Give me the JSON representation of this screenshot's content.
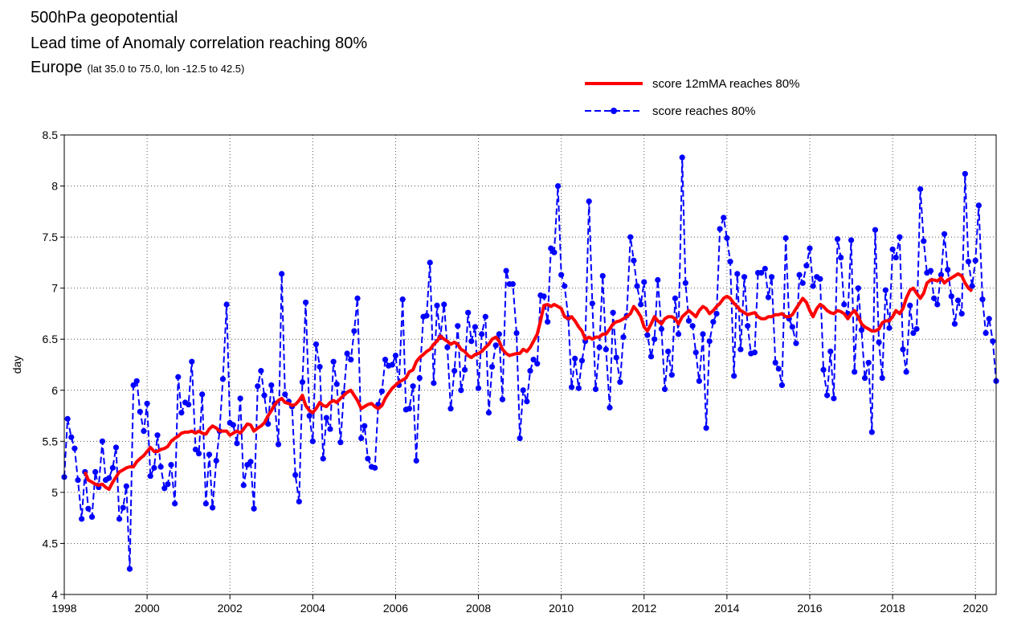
{
  "chart_data": {
    "type": "line",
    "title": "500hPa geopotential",
    "subtitle": "Lead time of Anomaly correlation reaching 80%",
    "region": "Europe",
    "region_note": "(lat  35.0 to 75.0, lon  -12.5 to  42.5)",
    "y_label": "day",
    "grid": true,
    "xlim": [
      1998,
      2020.5
    ],
    "xticks": [
      1998,
      2000,
      2002,
      2004,
      2006,
      2008,
      2010,
      2012,
      2014,
      2016,
      2018,
      2020
    ],
    "ylim": [
      4,
      8.5
    ],
    "yticks": [
      4,
      4.5,
      5,
      5.5,
      6,
      6.5,
      7,
      7.5,
      8,
      8.5
    ],
    "x": [
      1998.0,
      1998.08,
      1998.17,
      1998.25,
      1998.33,
      1998.42,
      1998.5,
      1998.58,
      1998.67,
      1998.75,
      1998.83,
      1998.92,
      1999.0,
      1999.08,
      1999.17,
      1999.25,
      1999.33,
      1999.42,
      1999.5,
      1999.58,
      1999.67,
      1999.75,
      1999.83,
      1999.92,
      2000.0,
      2000.08,
      2000.17,
      2000.25,
      2000.33,
      2000.42,
      2000.5,
      2000.58,
      2000.67,
      2000.75,
      2000.83,
      2000.92,
      2001.0,
      2001.08,
      2001.17,
      2001.25,
      2001.33,
      2001.42,
      2001.5,
      2001.58,
      2001.67,
      2001.75,
      2001.83,
      2001.92,
      2002.0,
      2002.08,
      2002.17,
      2002.25,
      2002.33,
      2002.42,
      2002.5,
      2002.58,
      2002.67,
      2002.75,
      2002.83,
      2002.92,
      2003.0,
      2003.08,
      2003.17,
      2003.25,
      2003.33,
      2003.42,
      2003.5,
      2003.58,
      2003.67,
      2003.75,
      2003.83,
      2003.92,
      2004.0,
      2004.08,
      2004.17,
      2004.25,
      2004.33,
      2004.42,
      2004.5,
      2004.58,
      2004.67,
      2004.75,
      2004.83,
      2004.92,
      2005.0,
      2005.08,
      2005.17,
      2005.25,
      2005.33,
      2005.42,
      2005.5,
      2005.58,
      2005.67,
      2005.75,
      2005.83,
      2005.92,
      2006.0,
      2006.08,
      2006.17,
      2006.25,
      2006.33,
      2006.42,
      2006.5,
      2006.58,
      2006.67,
      2006.75,
      2006.83,
      2006.92,
      2007.0,
      2007.08,
      2007.17,
      2007.25,
      2007.33,
      2007.42,
      2007.5,
      2007.58,
      2007.67,
      2007.75,
      2007.83,
      2007.92,
      2008.0,
      2008.08,
      2008.17,
      2008.25,
      2008.33,
      2008.42,
      2008.5,
      2008.58,
      2008.67,
      2008.75,
      2008.83,
      2008.92,
      2009.0,
      2009.08,
      2009.17,
      2009.25,
      2009.33,
      2009.42,
      2009.5,
      2009.58,
      2009.67,
      2009.75,
      2009.83,
      2009.92,
      2010.0,
      2010.08,
      2010.17,
      2010.25,
      2010.33,
      2010.42,
      2010.5,
      2010.58,
      2010.67,
      2010.75,
      2010.83,
      2010.92,
      2011.0,
      2011.08,
      2011.17,
      2011.25,
      2011.33,
      2011.42,
      2011.5,
      2011.58,
      2011.67,
      2011.75,
      2011.83,
      2011.92,
      2012.0,
      2012.08,
      2012.17,
      2012.25,
      2012.33,
      2012.42,
      2012.5,
      2012.58,
      2012.67,
      2012.75,
      2012.83,
      2012.92,
      2013.0,
      2013.08,
      2013.17,
      2013.25,
      2013.33,
      2013.42,
      2013.5,
      2013.58,
      2013.67,
      2013.75,
      2013.83,
      2013.92,
      2014.0,
      2014.08,
      2014.17,
      2014.25,
      2014.33,
      2014.42,
      2014.5,
      2014.58,
      2014.67,
      2014.75,
      2014.83,
      2014.92,
      2015.0,
      2015.08,
      2015.17,
      2015.25,
      2015.33,
      2015.42,
      2015.5,
      2015.58,
      2015.67,
      2015.75,
      2015.83,
      2015.92,
      2016.0,
      2016.08,
      2016.17,
      2016.25,
      2016.33,
      2016.42,
      2016.5,
      2016.58,
      2016.67,
      2016.75,
      2016.83,
      2016.92,
      2017.0,
      2017.08,
      2017.17,
      2017.25,
      2017.33,
      2017.42,
      2017.5,
      2017.58,
      2017.67,
      2017.75,
      2017.83,
      2017.92,
      2018.0,
      2018.08,
      2018.17,
      2018.25,
      2018.33,
      2018.42,
      2018.5,
      2018.58,
      2018.67,
      2018.75,
      2018.83,
      2018.92,
      2019.0,
      2019.08,
      2019.17,
      2019.25,
      2019.33,
      2019.42,
      2019.5,
      2019.58,
      2019.67,
      2019.75,
      2019.83,
      2019.92,
      2020.0,
      2020.08,
      2020.17,
      2020.25,
      2020.33,
      2020.42,
      2020.5
    ],
    "series": [
      {
        "name": "score 12mMA reaches 80%",
        "color": "#ff0000",
        "dashed": false,
        "markers": false,
        "width": 4,
        "values": [
          null,
          null,
          null,
          null,
          null,
          null,
          5.2,
          5.12,
          5.1,
          5.08,
          5.07,
          5.08,
          5.05,
          5.03,
          5.1,
          5.15,
          5.2,
          5.22,
          5.24,
          5.25,
          5.25,
          5.3,
          5.33,
          5.36,
          5.4,
          5.44,
          5.4,
          5.4,
          5.42,
          5.43,
          5.45,
          5.5,
          5.53,
          5.55,
          5.58,
          5.59,
          5.59,
          5.6,
          5.58,
          5.6,
          5.58,
          5.57,
          5.62,
          5.65,
          5.63,
          5.6,
          5.6,
          5.6,
          5.56,
          5.58,
          5.6,
          5.58,
          5.62,
          5.67,
          5.66,
          5.6,
          5.63,
          5.65,
          5.68,
          5.75,
          5.8,
          5.86,
          5.9,
          5.92,
          5.88,
          5.87,
          5.85,
          5.86,
          5.9,
          5.95,
          5.85,
          5.8,
          5.78,
          5.82,
          5.88,
          5.85,
          5.84,
          5.88,
          5.9,
          5.88,
          5.92,
          5.95,
          5.98,
          6.0,
          5.95,
          5.9,
          5.82,
          5.84,
          5.86,
          5.87,
          5.84,
          5.82,
          5.85,
          5.92,
          5.97,
          6.02,
          6.05,
          6.08,
          6.1,
          6.12,
          6.18,
          6.2,
          6.28,
          6.32,
          6.35,
          6.38,
          6.4,
          6.45,
          6.48,
          6.53,
          6.5,
          6.48,
          6.45,
          6.47,
          6.45,
          6.4,
          6.38,
          6.34,
          6.32,
          6.35,
          6.36,
          6.38,
          6.42,
          6.45,
          6.5,
          6.52,
          6.48,
          6.4,
          6.36,
          6.34,
          6.35,
          6.36,
          6.36,
          6.4,
          6.38,
          6.42,
          6.48,
          6.55,
          6.68,
          6.83,
          6.84,
          6.82,
          6.84,
          6.82,
          6.8,
          6.72,
          6.7,
          6.72,
          6.68,
          6.62,
          6.58,
          6.5,
          6.52,
          6.5,
          6.52,
          6.52,
          6.55,
          6.55,
          6.6,
          6.65,
          6.67,
          6.68,
          6.7,
          6.72,
          6.75,
          6.82,
          6.78,
          6.72,
          6.62,
          6.58,
          6.65,
          6.72,
          6.68,
          6.65,
          6.7,
          6.72,
          6.72,
          6.7,
          6.65,
          6.72,
          6.75,
          6.78,
          6.75,
          6.72,
          6.78,
          6.82,
          6.8,
          6.75,
          6.78,
          6.82,
          6.85,
          6.9,
          6.92,
          6.9,
          6.85,
          6.82,
          6.78,
          6.76,
          6.74,
          6.75,
          6.76,
          6.72,
          6.7,
          6.7,
          6.72,
          6.72,
          6.74,
          6.74,
          6.75,
          6.72,
          6.72,
          6.74,
          6.8,
          6.85,
          6.9,
          6.86,
          6.78,
          6.72,
          6.8,
          6.84,
          6.82,
          6.78,
          6.76,
          6.75,
          6.78,
          6.77,
          6.75,
          6.7,
          6.75,
          6.78,
          6.72,
          6.65,
          6.62,
          6.6,
          6.58,
          6.58,
          6.6,
          6.66,
          6.68,
          6.68,
          6.72,
          6.78,
          6.75,
          6.8,
          6.9,
          6.98,
          7.0,
          6.95,
          6.9,
          6.95,
          7.05,
          7.08,
          7.08,
          7.07,
          7.1,
          7.05,
          7.08,
          7.1,
          7.12,
          7.14,
          7.12,
          7.05,
          7.0,
          6.97,
          null,
          null,
          null,
          null,
          null,
          null,
          null
        ]
      },
      {
        "name": "score reaches 80%",
        "color": "#0000ff",
        "dashed": true,
        "markers": true,
        "width": 2,
        "values": [
          5.15,
          5.72,
          5.54,
          5.43,
          5.12,
          4.74,
          5.2,
          4.84,
          4.76,
          5.2,
          5.05,
          5.5,
          5.12,
          5.14,
          5.24,
          5.44,
          4.74,
          4.85,
          5.06,
          4.25,
          6.05,
          6.09,
          5.79,
          5.6,
          5.87,
          5.16,
          5.24,
          5.56,
          5.25,
          5.04,
          5.08,
          5.27,
          4.89,
          6.13,
          5.78,
          5.88,
          5.86,
          6.28,
          5.42,
          5.38,
          5.96,
          4.89,
          5.37,
          4.85,
          5.31,
          5.6,
          6.11,
          6.84,
          5.68,
          5.66,
          5.48,
          5.92,
          5.07,
          5.27,
          5.3,
          4.84,
          6.04,
          6.19,
          5.95,
          5.67,
          6.05,
          5.87,
          5.47,
          7.14,
          5.96,
          5.89,
          5.84,
          5.17,
          4.91,
          6.08,
          6.86,
          5.75,
          5.5,
          6.45,
          6.23,
          5.33,
          5.73,
          5.62,
          6.28,
          6.06,
          5.49,
          5.97,
          6.36,
          6.3,
          6.58,
          6.9,
          5.53,
          5.65,
          5.33,
          5.25,
          5.24,
          5.86,
          5.99,
          6.3,
          6.24,
          6.25,
          6.34,
          6.05,
          6.89,
          5.81,
          5.82,
          6.04,
          5.31,
          6.12,
          6.72,
          6.73,
          7.25,
          6.07,
          6.83,
          6.52,
          6.84,
          6.42,
          5.82,
          6.19,
          6.63,
          6.0,
          6.2,
          6.76,
          6.48,
          6.62,
          6.02,
          6.55,
          6.72,
          5.78,
          6.23,
          6.44,
          6.55,
          5.91,
          7.17,
          7.04,
          7.04,
          6.56,
          5.53,
          6.0,
          5.89,
          6.19,
          6.3,
          6.26,
          6.93,
          6.92,
          6.67,
          7.39,
          7.35,
          8.0,
          7.13,
          7.02,
          6.71,
          6.03,
          6.31,
          6.02,
          6.29,
          6.48,
          7.85,
          6.85,
          6.01,
          6.42,
          7.12,
          6.4,
          5.83,
          6.76,
          6.32,
          6.08,
          6.52,
          6.73,
          7.5,
          7.27,
          7.02,
          6.84,
          7.06,
          6.54,
          6.33,
          6.5,
          7.08,
          6.6,
          6.01,
          6.38,
          6.15,
          6.9,
          6.55,
          8.28,
          7.05,
          6.68,
          6.63,
          6.37,
          6.09,
          6.55,
          5.63,
          6.48,
          6.67,
          6.75,
          7.58,
          7.69,
          7.49,
          7.26,
          6.14,
          7.14,
          6.4,
          7.11,
          6.63,
          6.36,
          6.37,
          7.15,
          7.15,
          7.19,
          6.91,
          7.11,
          6.27,
          6.21,
          6.05,
          7.49,
          6.7,
          6.62,
          6.46,
          7.13,
          7.05,
          7.22,
          7.39,
          7.02,
          7.11,
          7.09,
          6.2,
          5.95,
          6.38,
          5.92,
          7.48,
          7.3,
          6.84,
          6.75,
          7.47,
          6.18,
          7.0,
          6.59,
          6.12,
          6.27,
          5.59,
          7.57,
          6.47,
          6.12,
          6.98,
          6.61,
          7.38,
          7.3,
          7.5,
          6.4,
          6.18,
          6.83,
          6.56,
          6.6,
          7.97,
          7.46,
          7.15,
          7.17,
          6.9,
          6.84,
          7.13,
          7.53,
          7.18,
          6.92,
          6.65,
          6.88,
          6.75,
          8.12,
          7.26,
          7.02,
          7.27,
          7.81,
          6.89,
          6.56,
          6.7,
          6.48,
          6.09
        ]
      }
    ]
  }
}
